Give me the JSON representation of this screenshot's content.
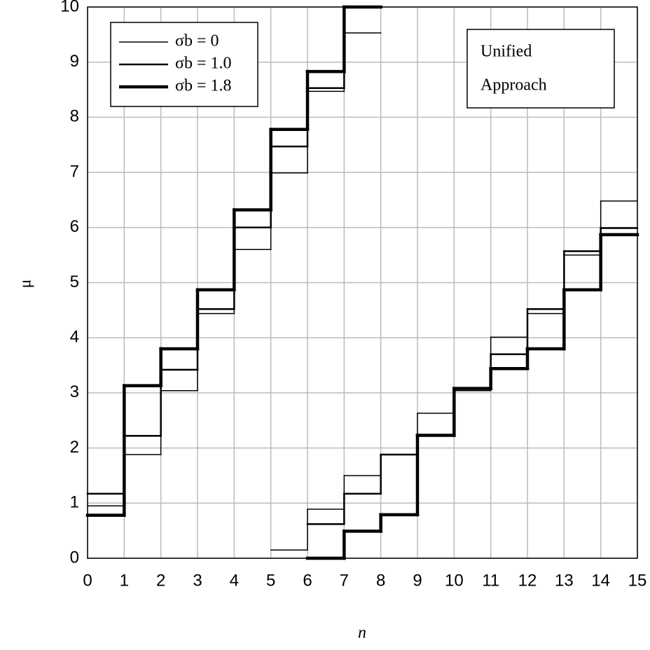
{
  "chart_data": {
    "type": "step",
    "xlabel": "n",
    "ylabel": "μ",
    "annotation": [
      "Unified",
      "Approach"
    ],
    "xlim": [
      0,
      15
    ],
    "xticks": [
      0,
      1,
      2,
      3,
      4,
      5,
      6,
      7,
      8,
      9,
      10,
      11,
      12,
      13,
      14,
      15
    ],
    "ylim": [
      0,
      10
    ],
    "yticks": [
      0,
      1,
      2,
      3,
      4,
      5,
      6,
      7,
      8,
      9,
      10
    ],
    "grid": true,
    "legend": "upper left",
    "bins": [
      0,
      1,
      2,
      3,
      4,
      5,
      6,
      7,
      8,
      9,
      10,
      11,
      12,
      13,
      14,
      15
    ],
    "series": [
      {
        "name": "σb = 0",
        "color": "#000000",
        "width": 1.5,
        "upper": [
          0.95,
          1.88,
          3.04,
          4.44,
          5.6,
          6.99,
          8.47,
          9.53,
          null,
          null,
          null,
          null,
          null,
          null,
          null
        ],
        "lower": [
          null,
          null,
          null,
          null,
          null,
          0.15,
          0.89,
          1.5,
          1.88,
          2.63,
          3.04,
          4.01,
          4.44,
          5.5,
          6.48
        ]
      },
      {
        "name": "σb = 1.0",
        "color": "#000000",
        "width": 2.5,
        "upper": [
          1.17,
          2.22,
          3.42,
          4.52,
          6.0,
          7.47,
          8.53,
          10,
          null,
          null,
          null,
          null,
          null,
          null,
          null
        ],
        "lower": [
          null,
          null,
          null,
          null,
          null,
          null,
          0.62,
          1.17,
          1.88,
          2.23,
          3.08,
          3.7,
          4.52,
          5.57,
          5.99
        ]
      },
      {
        "name": "σb = 1.8",
        "color": "#000000",
        "width": 4.5,
        "upper": [
          0.78,
          3.13,
          3.8,
          4.87,
          6.32,
          7.78,
          8.83,
          10,
          null,
          null,
          null,
          null,
          null,
          null,
          null
        ],
        "lower": [
          null,
          null,
          null,
          null,
          null,
          null,
          0,
          0.49,
          0.79,
          2.23,
          3.08,
          3.44,
          3.8,
          4.87,
          5.87
        ]
      }
    ]
  }
}
